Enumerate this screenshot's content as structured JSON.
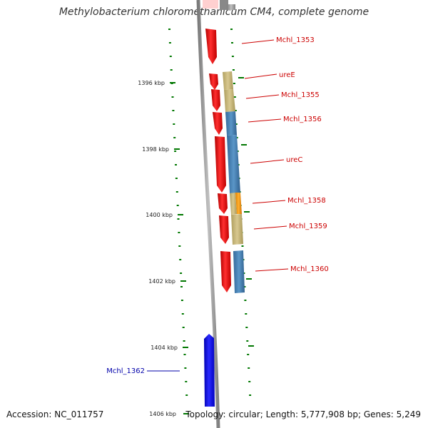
{
  "title": "Methylobacterium chloromethanicum CM4, complete genome",
  "footer": {
    "accession": "Accession: NC_011757",
    "topology": "Topology: circular; Length: 5,777,908 bp; Genes: 5,249"
  },
  "ticks": [
    {
      "label": "1396 kbp"
    },
    {
      "label": "1398 kbp"
    },
    {
      "label": "1400 kbp"
    },
    {
      "label": "1402 kbp"
    },
    {
      "label": "1404 kbp"
    },
    {
      "label": "1406 kbp"
    }
  ],
  "genes": [
    {
      "name": "Mchl_1353",
      "label_color": "#cc0000"
    },
    {
      "name": "ureE",
      "label_color": "#cc0000"
    },
    {
      "name": "Mchl_1355",
      "label_color": "#cc0000"
    },
    {
      "name": "Mchl_1356",
      "label_color": "#cc0000"
    },
    {
      "name": "ureC",
      "label_color": "#cc0000"
    },
    {
      "name": "Mchl_1358",
      "label_color": "#cc0000"
    },
    {
      "name": "Mchl_1359",
      "label_color": "#cc0000"
    },
    {
      "name": "Mchl_1360",
      "label_color": "#cc0000"
    },
    {
      "name": "Mchl_1362",
      "label_color": "#0000aa"
    }
  ],
  "colors": {
    "forward_gene": "#ff0000",
    "reverse_gene": "#0000ff",
    "khaki_feature": "#c8b878",
    "steelblue_feature": "#4682b4",
    "orange_feature": "#ff9900",
    "backbone": "#999999",
    "tick_green": "#007700"
  }
}
